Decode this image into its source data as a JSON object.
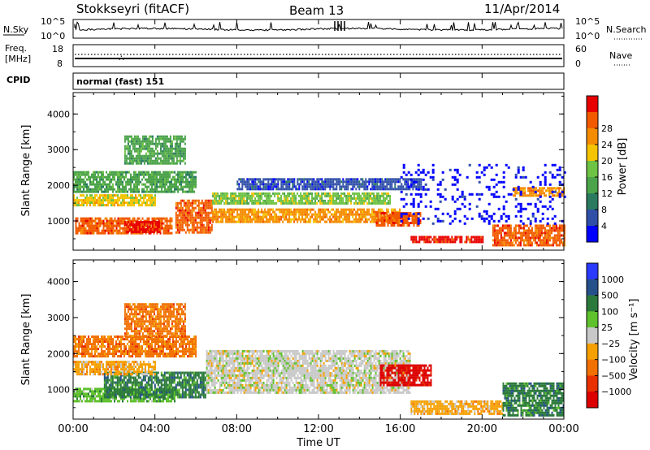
{
  "header": {
    "station": "Stokkseyri (fitACF)",
    "beam": "Beam 13",
    "date": "11/Apr/2014"
  },
  "strips": {
    "nsky_label": "N.Sky",
    "nsky_ticks": [
      "10^5",
      "10^0"
    ],
    "nsky_right_ticks": [
      "10^5",
      "10^0"
    ],
    "nsearch_label": "N.Search",
    "freq_label_1": "Freq.",
    "freq_label_2": "[MHz]",
    "freq_ticks": [
      "18",
      "8"
    ],
    "nave_ticks": [
      "60",
      "0"
    ],
    "nave_label": "Nave",
    "cpid_label": "CPID",
    "cpid_value": "normal (fast) 151"
  },
  "colors": {
    "power": [
      "#0000ff",
      "#3050a8",
      "#2a7a60",
      "#4ba34a",
      "#6ec244",
      "#f5c400",
      "#f58c00",
      "#f25a00",
      "#e80000"
    ],
    "velocity": [
      "#2a3aff",
      "#26508a",
      "#2b7a3b",
      "#5fc12c",
      "#c8c8c8",
      "#f5a000",
      "#f27000",
      "#e83000",
      "#dd0000"
    ]
  },
  "chart_data": [
    {
      "type": "heatmap",
      "panel": "power",
      "ylabel": "Slant Range [km]",
      "ylim": [
        180,
        4600
      ],
      "yticks": [
        "1000",
        "2000",
        "3000",
        "4000"
      ],
      "xlim_hours": [
        0,
        24
      ],
      "colorbar": {
        "label": "Power [dB]",
        "ticks": [
          "4",
          "8",
          "12",
          "16",
          "20",
          "24",
          "28"
        ]
      },
      "bands": [
        {
          "t0": 0.1,
          "t1": 4.8,
          "r0": 650,
          "r1": 1100,
          "color_index": 7
        },
        {
          "t0": 2.5,
          "t1": 4.2,
          "r0": 700,
          "r1": 1000,
          "color_index": 8
        },
        {
          "t0": 5.0,
          "t1": 6.8,
          "r0": 700,
          "r1": 1600,
          "color_index": 7
        },
        {
          "t0": 0.0,
          "t1": 4.0,
          "r0": 1450,
          "r1": 1750,
          "color_index": 5
        },
        {
          "t0": 0.0,
          "t1": 6.0,
          "r0": 1800,
          "r1": 2400,
          "color_index": 3
        },
        {
          "t0": 2.5,
          "t1": 5.5,
          "r0": 2600,
          "r1": 3400,
          "color_index": 3
        },
        {
          "t0": 6.8,
          "t1": 16.0,
          "r0": 1000,
          "r1": 1350,
          "color_index": 6
        },
        {
          "t0": 6.8,
          "t1": 15.5,
          "r0": 1500,
          "r1": 1800,
          "color_index": 4
        },
        {
          "t0": 8.0,
          "t1": 17.0,
          "r0": 1900,
          "r1": 2200,
          "color_index": 1
        },
        {
          "t0": 14.8,
          "t1": 17.0,
          "r0": 850,
          "r1": 1250,
          "color_index": 7
        },
        {
          "t0": 16.5,
          "t1": 20.0,
          "r0": 380,
          "r1": 580,
          "color_index": 8
        },
        {
          "t0": 20.5,
          "t1": 24.0,
          "r0": 300,
          "r1": 900,
          "color_index": 7
        },
        {
          "t0": 21.5,
          "t1": 24.0,
          "r0": 1700,
          "r1": 1950,
          "color_index": 6
        },
        {
          "t0": 16.0,
          "t1": 24.0,
          "r0": 900,
          "r1": 2600,
          "color_index": 0
        }
      ]
    },
    {
      "type": "heatmap",
      "panel": "velocity",
      "ylabel": "Slant Range [km]",
      "ylim": [
        180,
        4600
      ],
      "yticks": [
        "1000",
        "2000",
        "3000",
        "4000"
      ],
      "xlim_hours": [
        0,
        24
      ],
      "xticks": [
        "00:00",
        "04:00",
        "08:00",
        "12:00",
        "16:00",
        "20:00",
        "00:00"
      ],
      "xlabel": "Time UT",
      "colorbar": {
        "label": "Velocity [m s⁻¹]",
        "ticks": [
          "1000",
          "500",
          "100",
          "25",
          "−25",
          "−100",
          "−500",
          "−1000"
        ]
      },
      "bands": [
        {
          "t0": 0.0,
          "t1": 5.0,
          "r0": 650,
          "r1": 1050,
          "color_index": 3
        },
        {
          "t0": 1.5,
          "t1": 6.5,
          "r0": 800,
          "r1": 1500,
          "color_index": 2
        },
        {
          "t0": 0.0,
          "t1": 4.0,
          "r0": 1400,
          "r1": 1800,
          "color_index": 5
        },
        {
          "t0": 0.0,
          "t1": 6.0,
          "r0": 1900,
          "r1": 2500,
          "color_index": 6
        },
        {
          "t0": 2.5,
          "t1": 5.5,
          "r0": 2500,
          "r1": 3400,
          "color_index": 6
        },
        {
          "t0": 6.5,
          "t1": 16.5,
          "r0": 900,
          "r1": 2100,
          "color_index": 4
        },
        {
          "t0": 15.0,
          "t1": 17.5,
          "r0": 1100,
          "r1": 1700,
          "color_index": 8
        },
        {
          "t0": 16.5,
          "t1": 21.0,
          "r0": 350,
          "r1": 700,
          "color_index": 5
        },
        {
          "t0": 21.0,
          "t1": 24.0,
          "r0": 300,
          "r1": 1200,
          "color_index": 2
        }
      ]
    }
  ]
}
